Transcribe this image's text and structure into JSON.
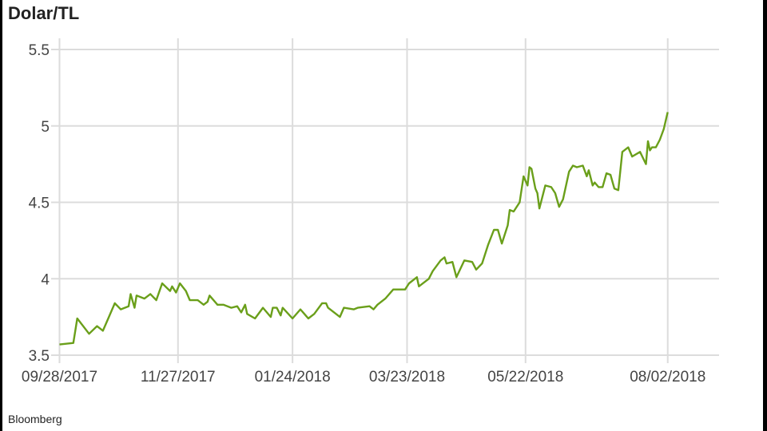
{
  "chart_data": {
    "type": "line",
    "title": "Dolar/TL",
    "source": "Bloomberg",
    "xlabel": "",
    "ylabel": "",
    "ylim": [
      3.5,
      5.5
    ],
    "xlim": [
      "2017-09-27",
      "2018-08-28"
    ],
    "grid": true,
    "line_color": "#6a9f1a",
    "y_ticks": [
      3.5,
      4,
      4.5,
      5,
      5.5
    ],
    "y_tick_labels": [
      "3.5",
      "4",
      "4.5",
      "5",
      "5.5"
    ],
    "x_ticks": [
      "2017-09-28",
      "2017-11-27",
      "2018-01-24",
      "2018-03-23",
      "2018-05-22",
      "2018-08-02"
    ],
    "x_tick_labels": [
      "09/28/2017",
      "11/27/2017",
      "01/24/2018",
      "03/23/2018",
      "05/22/2018",
      "08/02/2018"
    ],
    "series": [
      {
        "x": [
          "2017-09-28",
          "2017-10-05",
          "2017-10-07",
          "2017-10-13",
          "2017-10-17",
          "2017-10-20",
          "2017-10-23",
          "2017-10-26",
          "2017-10-29",
          "2017-11-02",
          "2017-11-03",
          "2017-11-05",
          "2017-11-06",
          "2017-11-10",
          "2017-11-13",
          "2017-11-16",
          "2017-11-19",
          "2017-11-23",
          "2017-11-24",
          "2017-11-26",
          "2017-11-28",
          "2017-12-01",
          "2017-12-03",
          "2017-12-07",
          "2017-12-10",
          "2017-12-12",
          "2017-12-13",
          "2017-12-17",
          "2017-12-20",
          "2017-12-24",
          "2017-12-27",
          "2017-12-29",
          "2017-12-31",
          "2018-01-01",
          "2018-01-05",
          "2018-01-09",
          "2018-01-13",
          "2018-01-14",
          "2018-01-16",
          "2018-01-18",
          "2018-01-19",
          "2018-01-24",
          "2018-01-28",
          "2018-02-01",
          "2018-02-04",
          "2018-02-08",
          "2018-02-10",
          "2018-02-11",
          "2018-02-17",
          "2018-02-19",
          "2018-02-24",
          "2018-02-26",
          "2018-03-04",
          "2018-03-06",
          "2018-03-08",
          "2018-03-12",
          "2018-03-16",
          "2018-03-22",
          "2018-03-24",
          "2018-03-28",
          "2018-03-29",
          "2018-04-03",
          "2018-04-05",
          "2018-04-09",
          "2018-04-11",
          "2018-04-12",
          "2018-04-15",
          "2018-04-17",
          "2018-04-21",
          "2018-04-25",
          "2018-04-27",
          "2018-04-30",
          "2018-05-03",
          "2018-05-06",
          "2018-05-08",
          "2018-05-10",
          "2018-05-13",
          "2018-05-14",
          "2018-05-16",
          "2018-05-19",
          "2018-05-21",
          "2018-05-23",
          "2018-05-24",
          "2018-05-25",
          "2018-05-27",
          "2018-05-28",
          "2018-05-29",
          "2018-06-01",
          "2018-06-04",
          "2018-06-06",
          "2018-06-08",
          "2018-06-10",
          "2018-06-13",
          "2018-06-15",
          "2018-06-17",
          "2018-06-20",
          "2018-06-22",
          "2018-06-23",
          "2018-06-25",
          "2018-06-26",
          "2018-06-28",
          "2018-06-30",
          "2018-07-02",
          "2018-07-04",
          "2018-07-06",
          "2018-07-08",
          "2018-07-10",
          "2018-07-13",
          "2018-07-15",
          "2018-07-19",
          "2018-07-22",
          "2018-07-23",
          "2018-07-24",
          "2018-07-25",
          "2018-07-27",
          "2018-07-29",
          "2018-07-31",
          "2018-08-02"
        ],
        "y": [
          3.57,
          3.58,
          3.74,
          3.64,
          3.69,
          3.66,
          3.75,
          3.84,
          3.8,
          3.82,
          3.9,
          3.81,
          3.89,
          3.87,
          3.9,
          3.86,
          3.97,
          3.92,
          3.95,
          3.91,
          3.97,
          3.92,
          3.86,
          3.86,
          3.83,
          3.85,
          3.89,
          3.83,
          3.83,
          3.81,
          3.82,
          3.78,
          3.83,
          3.77,
          3.74,
          3.81,
          3.75,
          3.81,
          3.81,
          3.76,
          3.81,
          3.74,
          3.8,
          3.74,
          3.77,
          3.84,
          3.84,
          3.81,
          3.75,
          3.81,
          3.8,
          3.81,
          3.82,
          3.8,
          3.83,
          3.87,
          3.93,
          3.93,
          3.97,
          4.01,
          3.95,
          4.0,
          4.05,
          4.12,
          4.14,
          4.1,
          4.11,
          4.01,
          4.12,
          4.11,
          4.06,
          4.1,
          4.22,
          4.32,
          4.32,
          4.23,
          4.35,
          4.45,
          4.44,
          4.5,
          4.67,
          4.61,
          4.73,
          4.72,
          4.59,
          4.56,
          4.46,
          4.61,
          4.6,
          4.56,
          4.47,
          4.52,
          4.7,
          4.74,
          4.73,
          4.74,
          4.67,
          4.71,
          4.61,
          4.63,
          4.6,
          4.6,
          4.69,
          4.68,
          4.59,
          4.58,
          4.83,
          4.86,
          4.8,
          4.83,
          4.75,
          4.9,
          4.84,
          4.86,
          4.86,
          4.91,
          4.98,
          5.09
        ]
      }
    ]
  }
}
